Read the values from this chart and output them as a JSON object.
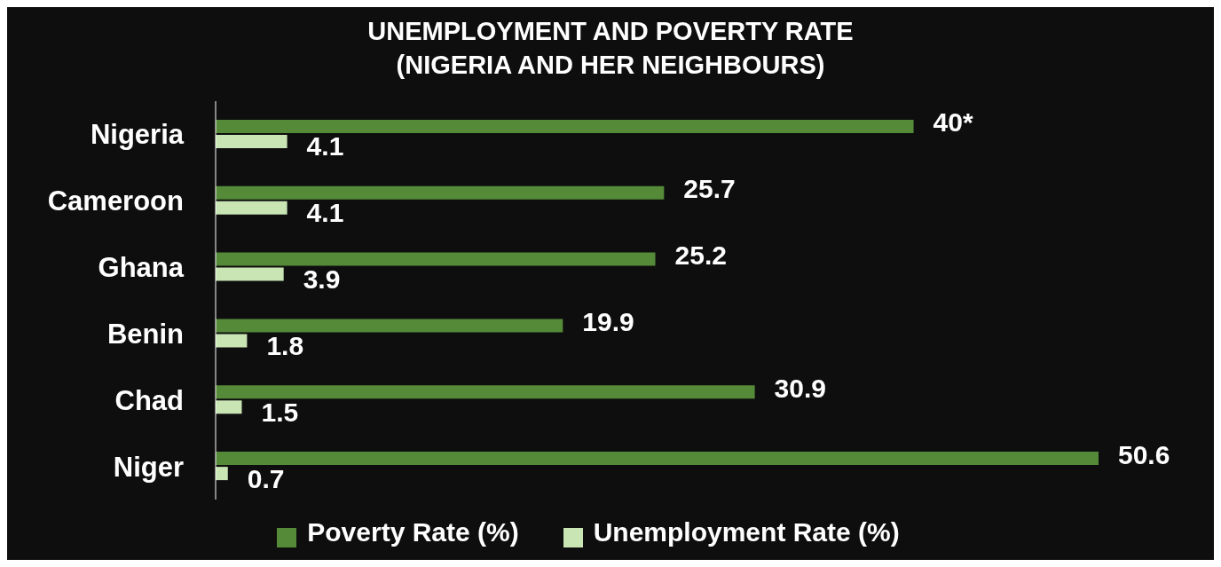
{
  "chart_data": {
    "type": "bar",
    "orientation": "horizontal",
    "title": "UNEMPLOYMENT AND POVERTY RATE\n(NIGERIA AND HER NEIGHBOURS)",
    "categories": [
      "Nigeria",
      "Cameroon",
      "Ghana",
      "Benin",
      "Chad",
      "Niger"
    ],
    "series": [
      {
        "name": "Poverty Rate (%)",
        "color": "#548a38",
        "values": [
          40,
          25.7,
          25.2,
          19.9,
          30.9,
          50.6
        ],
        "value_labels": [
          "40*",
          "25.7",
          "25.2",
          "19.9",
          "30.9",
          "50.6"
        ]
      },
      {
        "name": "Unemployment Rate (%)",
        "color": "#c9e5b4",
        "values": [
          4.1,
          4.1,
          3.9,
          1.8,
          1.5,
          0.7
        ],
        "value_labels": [
          "4.1",
          "4.1",
          "3.9",
          "1.8",
          "1.5",
          "0.7"
        ]
      }
    ],
    "tick_labels": "y",
    "grid": false,
    "legend": "bottom"
  }
}
